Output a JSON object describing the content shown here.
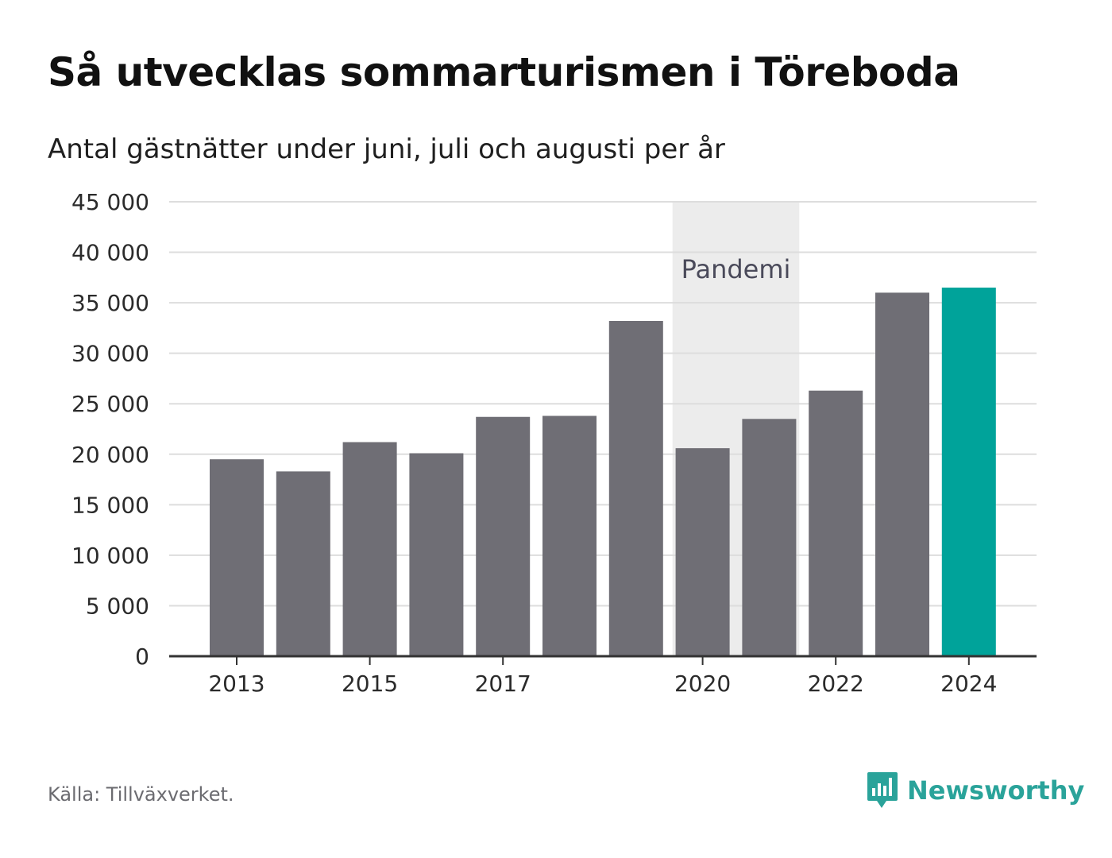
{
  "header": {
    "title": "Så utvecklas sommarturismen i Töreboda",
    "subtitle": "Antal gästnätter under juni, juli och augusti per år"
  },
  "footer": {
    "source": "Källa: Tillväxverket.",
    "brand": "Newsworthy",
    "brand_icon": "bar-chart-speech-bubble-icon"
  },
  "colors": {
    "bar": "#6f6e75",
    "highlight": "#00a39a",
    "band": "#ececec",
    "grid": "#dddddd",
    "axis": "#333333",
    "brand": "#2aa39a"
  },
  "chart_data": {
    "type": "bar",
    "title": "Så utvecklas sommarturismen i Töreboda",
    "subtitle": "Antal gästnätter under juni, juli och augusti per år",
    "xlabel": "",
    "ylabel": "",
    "ylim": [
      0,
      45000
    ],
    "y_ticks": [
      0,
      5000,
      10000,
      15000,
      20000,
      25000,
      30000,
      35000,
      40000,
      45000
    ],
    "y_tick_labels": [
      "0",
      "5 000",
      "10 000",
      "15 000",
      "20 000",
      "25 000",
      "30 000",
      "35 000",
      "40 000",
      "45 000"
    ],
    "categories": [
      "2013",
      "2014",
      "2015",
      "2016",
      "2017",
      "2018",
      "2019",
      "2020",
      "2021",
      "2022",
      "2023",
      "2024"
    ],
    "x_tick_labels_shown": [
      "2013",
      "2015",
      "2017",
      "2020",
      "2022",
      "2024"
    ],
    "values": [
      19500,
      18300,
      21200,
      20100,
      23700,
      23800,
      33200,
      20600,
      23500,
      26300,
      36000,
      36500
    ],
    "highlight_category": "2024",
    "grid": true,
    "legend": "none",
    "annotations": [
      {
        "type": "band",
        "label": "Pandemi",
        "from": "2020",
        "to": "2021"
      }
    ]
  }
}
